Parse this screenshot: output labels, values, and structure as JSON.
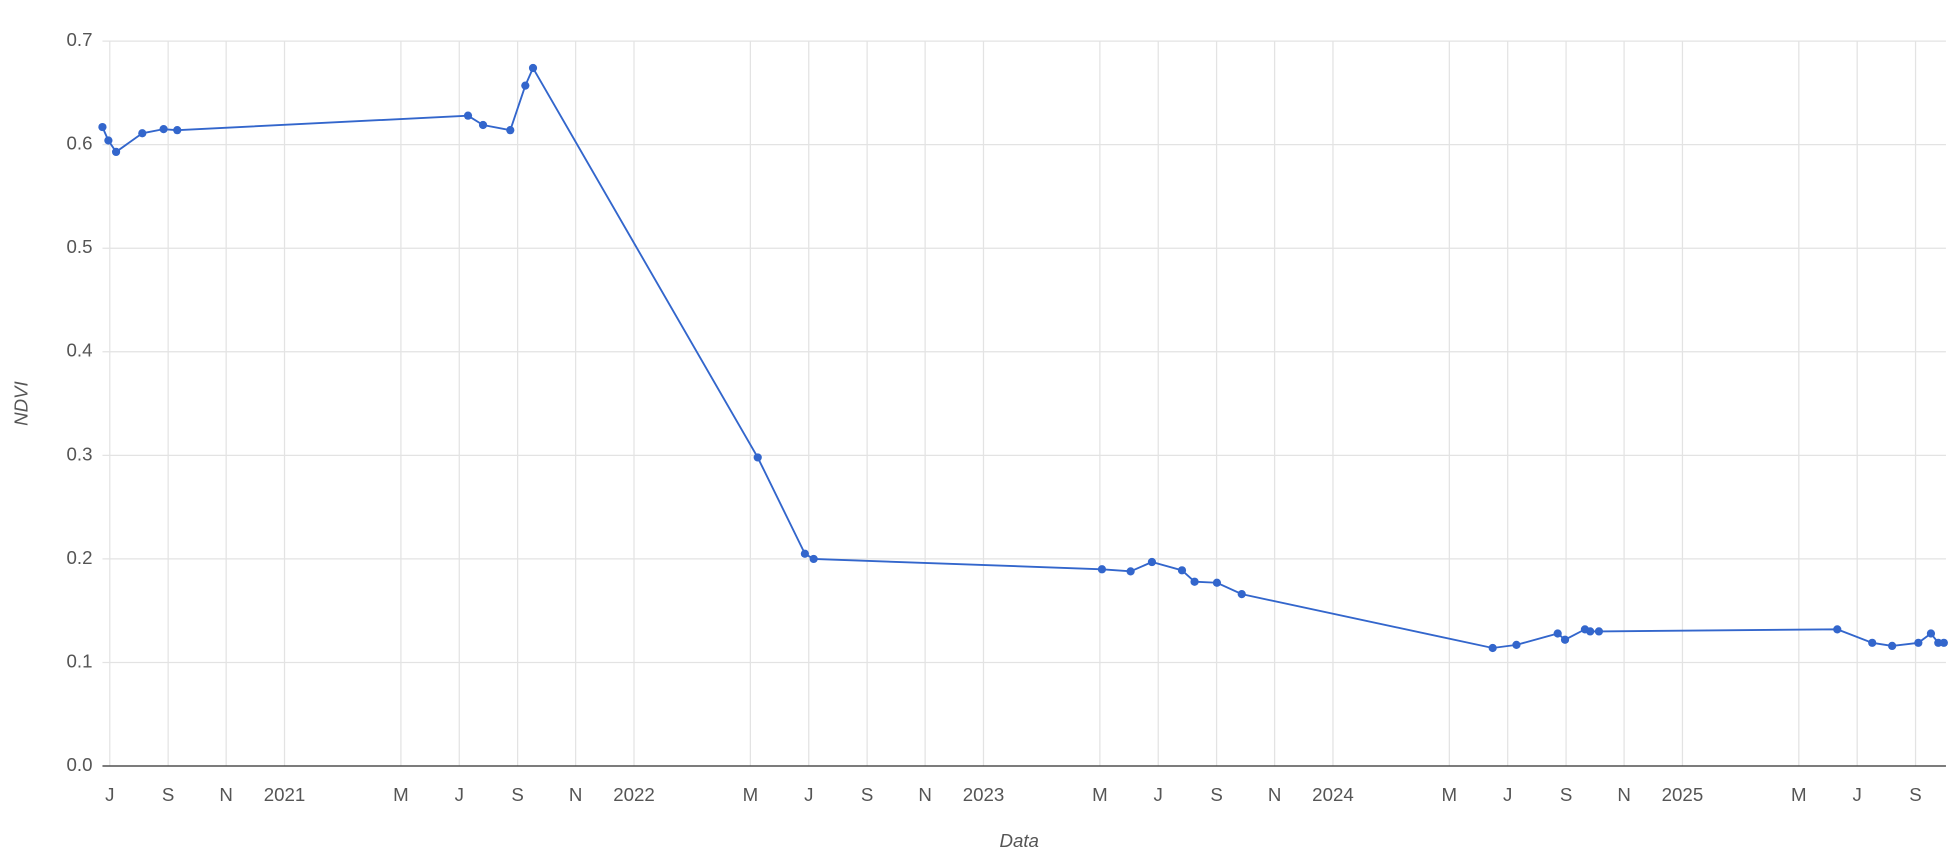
{
  "chart_data": {
    "type": "line",
    "x_label": "Data",
    "y_label": "NDVI",
    "x": [
      2020.479,
      2020.496,
      2020.518,
      2020.593,
      2020.654,
      2020.693,
      2021.525,
      2021.568,
      2021.646,
      2021.689,
      2021.711,
      2022.354,
      2022.489,
      2022.514,
      2023.339,
      2023.421,
      2023.482,
      2023.568,
      2023.604,
      2023.668,
      2023.739,
      2024.457,
      2024.525,
      2024.643,
      2024.664,
      2024.721,
      2024.736,
      2024.761,
      2025.443,
      2025.543,
      2025.6,
      2025.675,
      2025.711,
      2025.732,
      2025.748
    ],
    "series": [
      {
        "name": "NDVI",
        "color": "#3366cc",
        "values": [
          0.617,
          0.604,
          0.593,
          0.611,
          0.615,
          0.614,
          0.628,
          0.619,
          0.614,
          0.657,
          0.674,
          0.298,
          0.205,
          0.2,
          0.19,
          0.188,
          0.197,
          0.189,
          0.178,
          0.177,
          0.166,
          0.114,
          0.117,
          0.128,
          0.122,
          0.132,
          0.13,
          0.13,
          0.132,
          0.119,
          0.116,
          0.119,
          0.128,
          0.119,
          0.119
        ]
      }
    ],
    "xlim": [
      2020.479,
      2025.754
    ],
    "xticks": [
      {
        "value": 2020.5,
        "label": "J"
      },
      {
        "value": 2020.667,
        "label": "S"
      },
      {
        "value": 2020.833,
        "label": "N"
      },
      2021,
      {
        "value": 2021.333,
        "label": "M"
      },
      {
        "value": 2021.5,
        "label": "J"
      },
      {
        "value": 2021.667,
        "label": "S"
      },
      {
        "value": 2021.833,
        "label": "N"
      },
      2022,
      {
        "value": 2022.333,
        "label": "M"
      },
      {
        "value": 2022.5,
        "label": "J"
      },
      {
        "value": 2022.667,
        "label": "S"
      },
      {
        "value": 2022.833,
        "label": "N"
      },
      2023,
      {
        "value": 2023.333,
        "label": "M"
      },
      {
        "value": 2023.5,
        "label": "J"
      },
      {
        "value": 2023.667,
        "label": "S"
      },
      {
        "value": 2023.833,
        "label": "N"
      },
      2024,
      {
        "value": 2024.333,
        "label": "M"
      },
      {
        "value": 2024.5,
        "label": "J"
      },
      {
        "value": 2024.667,
        "label": "S"
      },
      {
        "value": 2024.833,
        "label": "N"
      },
      2025,
      {
        "value": 2025.333,
        "label": "M"
      },
      {
        "value": 2025.5,
        "label": "J"
      },
      {
        "value": 2025.667,
        "label": "S"
      }
    ],
    "ylim": [
      0,
      0.7
    ],
    "yticks": [
      {
        "value": 0,
        "label": "0.0"
      },
      0.1,
      0.2,
      0.3,
      0.4,
      0.5,
      0.6,
      0.7
    ],
    "grid": true
  }
}
